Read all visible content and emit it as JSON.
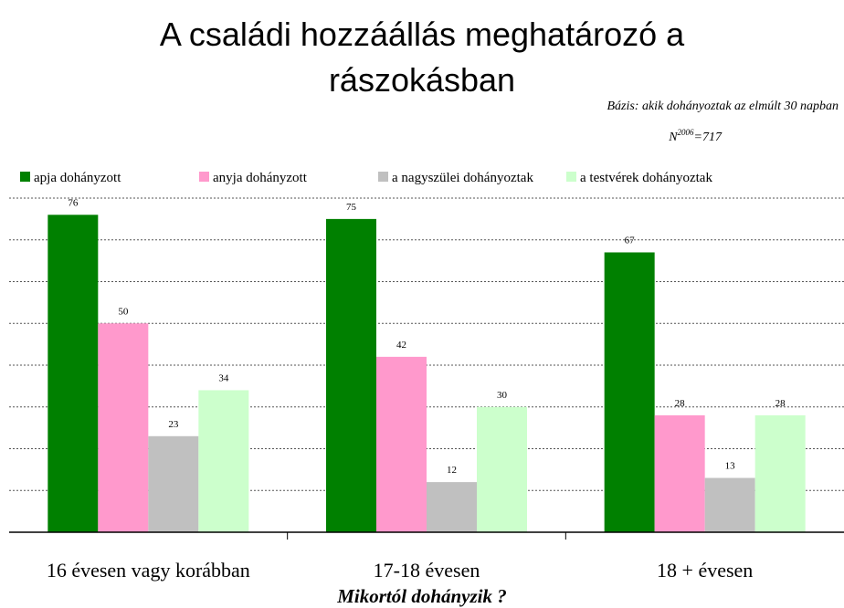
{
  "chart_data": {
    "type": "bar",
    "title": [
      "A családi hozzáállás meghatározó  a",
      "rászokásban"
    ],
    "annotations": [
      "Bázis: akik dohányoztak az elmúlt 30 napban",
      "N",
      "2006",
      "=717"
    ],
    "categories": [
      "16 évesen vagy korábban",
      "17-18 évesen",
      "18 + évesen"
    ],
    "x_label": "Mikortól dohányzik ?",
    "series": [
      {
        "name": "apja dohányzott",
        "color": "#008000",
        "values": [
          76,
          75,
          67
        ]
      },
      {
        "name": "anyja dohányzott",
        "color": "#ff99cc",
        "values": [
          50,
          42,
          28
        ]
      },
      {
        "name": "a nagyszülei dohányoztak",
        "color": "#c0c0c0",
        "values": [
          23,
          12,
          13
        ]
      },
      {
        "name": "a testvérek dohányoztak",
        "color": "#ccffcc",
        "values": [
          34,
          30,
          28
        ]
      }
    ],
    "ylim": [
      0,
      80
    ],
    "yticks": [
      10,
      20,
      30,
      40,
      50,
      60,
      70,
      80
    ],
    "grid": true,
    "legend": "top"
  }
}
